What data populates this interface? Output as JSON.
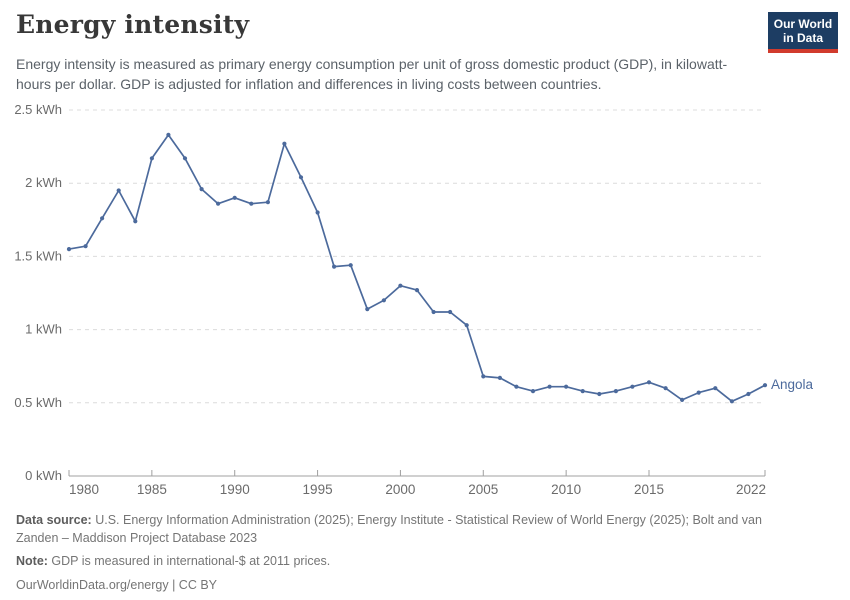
{
  "header": {
    "title": "Energy intensity",
    "subtitle": "Energy intensity is measured as primary energy consumption per unit of gross domestic product (GDP), in kilowatt-hours per dollar. GDP is adjusted for inflation and differences in living costs between countries.",
    "logo": {
      "line1": "Our World",
      "line2": "in Data"
    }
  },
  "chart_data": {
    "type": "line",
    "title": "Energy intensity",
    "unit": "kWh",
    "x": [
      1980,
      1981,
      1982,
      1983,
      1984,
      1985,
      1986,
      1987,
      1988,
      1989,
      1990,
      1991,
      1992,
      1993,
      1994,
      1995,
      1996,
      1997,
      1998,
      1999,
      2000,
      2001,
      2002,
      2003,
      2004,
      2005,
      2006,
      2007,
      2008,
      2009,
      2010,
      2011,
      2012,
      2013,
      2014,
      2015,
      2016,
      2017,
      2018,
      2019,
      2020,
      2021,
      2022
    ],
    "series": [
      {
        "name": "Angola",
        "values": [
          1.55,
          1.57,
          1.76,
          1.95,
          1.74,
          2.17,
          2.33,
          2.17,
          1.96,
          1.86,
          1.9,
          1.86,
          1.87,
          2.27,
          2.04,
          1.8,
          1.43,
          1.44,
          1.14,
          1.2,
          1.3,
          1.27,
          1.12,
          1.12,
          1.03,
          0.68,
          0.67,
          0.61,
          0.58,
          0.61,
          0.61,
          0.58,
          0.56,
          0.58,
          0.61,
          0.64,
          0.6,
          0.52,
          0.57,
          0.6,
          0.51,
          0.56,
          0.62
        ]
      }
    ],
    "xlim": [
      1980,
      2022
    ],
    "ylim": [
      0,
      2.5
    ],
    "xticks": [
      1980,
      1985,
      1990,
      1995,
      2000,
      2005,
      2010,
      2015,
      2022
    ],
    "yticks": [
      0,
      0.5,
      1,
      1.5,
      2,
      2.5
    ],
    "ytick_labels": [
      "0 kWh",
      "0.5 kWh",
      "1 kWh",
      "1.5 kWh",
      "2 kWh",
      "2.5 kWh"
    ],
    "grid": true,
    "legend_position": "end-of-line",
    "end_label": "Angola",
    "colors": {
      "line": "#4C6A9C",
      "end_label": "#4C6A9C",
      "grid": "#dcdcdc",
      "axis": "#a0a0a0",
      "tick_label": "#6b6b6b"
    }
  },
  "footer": {
    "source_label": "Data source:",
    "source_text": " U.S. Energy Information Administration (2025); Energy Institute - Statistical Review of World Energy (2025); Bolt and van Zanden – Maddison Project Database 2023",
    "note_label": "Note:",
    "note_text": " GDP is measured in international-$ at 2011 prices.",
    "license": "OurWorldinData.org/energy | CC BY"
  }
}
